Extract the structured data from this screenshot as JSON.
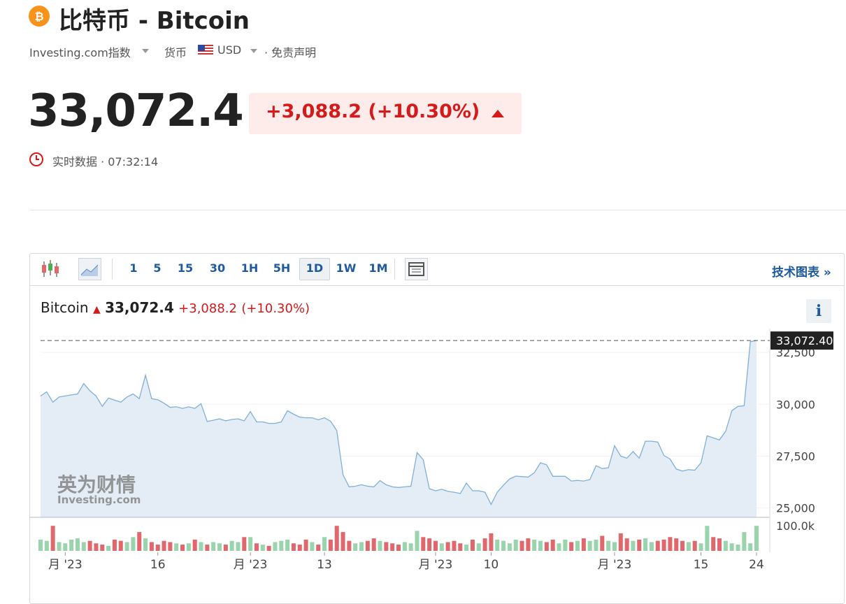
{
  "header": {
    "title": "比特币 - Bitcoin",
    "source": "Investing.com指数",
    "currency_label": "货币",
    "currency": "USD",
    "disclaimer": "· 免责声明"
  },
  "quote": {
    "price": "33,072.4",
    "change": "+3,088.2",
    "change_pct": "(+10.30%)",
    "time": "实时数据 · 07:32:14"
  },
  "toolbar": {
    "intervals": [
      "1",
      "5",
      "15",
      "30",
      "1H",
      "5H",
      "1D",
      "1W",
      "1M"
    ],
    "active": "1D",
    "link": "技术图表 »"
  },
  "legend": {
    "name": "Bitcoin",
    "price": "33,072.4",
    "change": "+3,088.2",
    "change_pct": "(+10.30%)"
  },
  "watermark": {
    "brand": "英为财情",
    "site": "Investing.com"
  },
  "chart_data": {
    "type": "area",
    "categories": [
      null,
      null,
      null,
      null,
      "月 '23",
      null,
      null,
      null,
      null,
      null,
      null,
      null,
      null,
      null,
      null,
      null,
      null,
      null,
      null,
      "16",
      null,
      null,
      null,
      null,
      null,
      null,
      null,
      null,
      null,
      null,
      null,
      null,
      null,
      null,
      "月 '23",
      null,
      null,
      null,
      null,
      null,
      null,
      null,
      null,
      null,
      null,
      null,
      "13",
      null,
      null,
      null,
      null,
      null,
      null,
      null,
      null,
      null,
      null,
      null,
      null,
      null,
      null,
      null,
      null,
      null,
      "月 '23",
      null,
      null,
      null,
      null,
      null,
      null,
      null,
      null,
      "10",
      null,
      null,
      null,
      null,
      null,
      null,
      null,
      null,
      null,
      null,
      null,
      null,
      null,
      null,
      null,
      null,
      null,
      null,
      null,
      "月 '23",
      null,
      null,
      null,
      null,
      null,
      null,
      null,
      null,
      null,
      null,
      null,
      null,
      null,
      "15",
      null,
      null,
      null,
      null,
      null,
      null,
      null,
      null,
      "24"
    ],
    "series": [
      {
        "name": "Bitcoin",
        "color": "#7fb0d8",
        "fill": "#e4edf6",
        "values": [
          30400,
          30600,
          30100,
          30350,
          30400,
          30450,
          30500,
          31000,
          30650,
          30400,
          29900,
          30300,
          30200,
          30100,
          30350,
          30500,
          30270,
          31400,
          30270,
          30220,
          30050,
          29850,
          29880,
          29800,
          29880,
          29800,
          30030,
          29170,
          29230,
          29300,
          29200,
          29270,
          29300,
          29200,
          29650,
          29150,
          29150,
          29080,
          29080,
          29150,
          29690,
          29520,
          29380,
          29350,
          29350,
          29250,
          29350,
          29180,
          28730,
          26600,
          26020,
          26050,
          26120,
          26050,
          26020,
          26320,
          26120,
          26020,
          25990,
          26020,
          26050,
          27670,
          27330,
          25930,
          25830,
          25900,
          25800,
          25760,
          25700,
          26200,
          25830,
          25830,
          25760,
          25170,
          25760,
          26100,
          26400,
          26540,
          26510,
          26490,
          26700,
          27180,
          27080,
          26530,
          26530,
          26530,
          26300,
          26330,
          26300,
          26370,
          27040,
          26900,
          26940,
          28000,
          27500,
          27400,
          27720,
          27400,
          28220,
          28220,
          28180,
          27530,
          27360,
          26880,
          26780,
          26850,
          26820,
          27180,
          28480,
          28380,
          28280,
          28700,
          29690,
          29900,
          29930,
          33020,
          33072.4
        ]
      }
    ],
    "volume": {
      "up": "#9ad4ad",
      "down": "#e0676c",
      "values": [
        45000,
        40000,
        100000,
        35000,
        30000,
        45000,
        50000,
        35000,
        40000,
        30000,
        25000,
        20000,
        45000,
        40000,
        35000,
        55000,
        75000,
        50000,
        35000,
        25000,
        40000,
        35000,
        30000,
        25000,
        30000,
        45000,
        35000,
        25000,
        35000,
        30000,
        25000,
        40000,
        35000,
        55000,
        55000,
        30000,
        25000,
        20000,
        35000,
        40000,
        45000,
        30000,
        25000,
        45000,
        35000,
        25000,
        55000,
        45000,
        100000,
        75000,
        40000,
        30000,
        35000,
        40000,
        50000,
        40000,
        35000,
        30000,
        25000,
        35000,
        30000,
        80000,
        55000,
        50000,
        40000,
        30000,
        35000,
        40000,
        30000,
        25000,
        45000,
        30000,
        50000,
        70000,
        45000,
        40000,
        30000,
        45000,
        40000,
        50000,
        45000,
        40000,
        35000,
        45000,
        30000,
        45000,
        35000,
        40000,
        50000,
        40000,
        45000,
        60000,
        40000,
        35000,
        70000,
        50000,
        40000,
        45000,
        50000,
        35000,
        40000,
        45000,
        55000,
        50000,
        40000,
        35000,
        40000,
        30000,
        100000,
        55000,
        50000,
        40000,
        30000,
        25000,
        75000,
        30000,
        100000
      ],
      "vlim": [
        0,
        120000
      ],
      "vticks": [
        {
          "value": 100000,
          "label": "100.0k"
        }
      ]
    },
    "ylim": [
      24550,
      33650
    ],
    "yticks": [
      {
        "value": 25000,
        "label": "25,000"
      },
      {
        "value": 27500,
        "label": "27,500"
      },
      {
        "value": 30000,
        "label": "30,000"
      },
      {
        "value": 32500,
        "label": "32,500"
      }
    ],
    "price_label": {
      "value": 33072.4,
      "label": "33,072.40"
    },
    "grid": true
  }
}
